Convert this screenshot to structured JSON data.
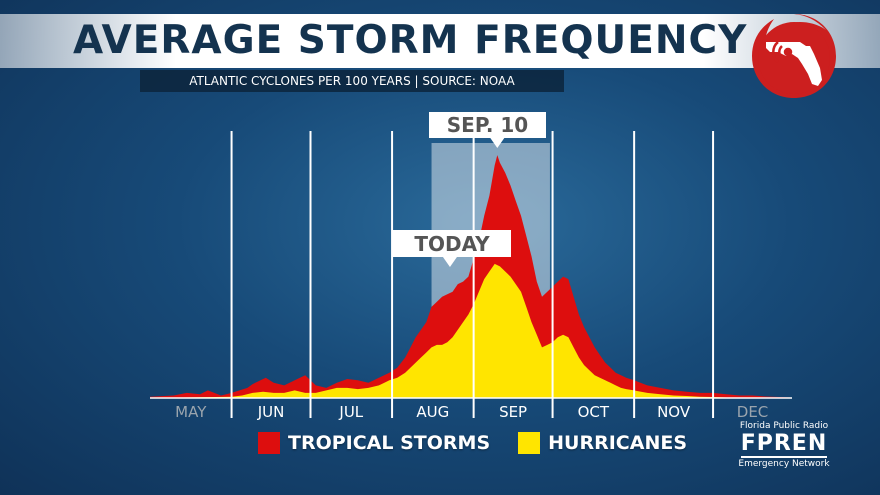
{
  "header": {
    "title": "AVERAGE STORM FREQUENCY",
    "subtitle": "ATLANTIC CYCLONES PER 100 YEARS | SOURCE: NOAA"
  },
  "branding": {
    "logo_icon": "storm-florida-logo-icon",
    "fpren_line1": "Florida Public Radio",
    "fpren_line2": "FPREN",
    "fpren_line3": "Emergency Network"
  },
  "colors": {
    "tropical": "#dd0e0e",
    "hurricane": "#ffe500",
    "title": "#14334f",
    "logo_red": "#cc1f1f"
  },
  "chart_data": {
    "type": "area",
    "title": "AVERAGE STORM FREQUENCY",
    "subtitle": "ATLANTIC CYCLONES PER 100 YEARS | SOURCE: NOAA",
    "xlabel": "",
    "ylabel": "",
    "x_unit": "day of year",
    "x_range": [
      121,
      365
    ],
    "y_range": [
      0,
      100
    ],
    "grid": "vertical lines at month boundaries",
    "month_ticks": [
      {
        "label": "MAY",
        "start": 121,
        "end": 152,
        "past": true
      },
      {
        "label": "JUN",
        "start": 152,
        "end": 182,
        "past": false
      },
      {
        "label": "JUL",
        "start": 182,
        "end": 213,
        "past": false
      },
      {
        "label": "AUG",
        "start": 213,
        "end": 244,
        "past": false
      },
      {
        "label": "SEP",
        "start": 244,
        "end": 274,
        "past": false
      },
      {
        "label": "OCT",
        "start": 274,
        "end": 305,
        "past": false
      },
      {
        "label": "NOV",
        "start": 305,
        "end": 335,
        "past": false
      },
      {
        "label": "DEC",
        "start": 335,
        "end": 365,
        "past": true
      }
    ],
    "highlight_range": [
      228,
      273
    ],
    "annotations": [
      {
        "label": "SEP. 10",
        "x": 253
      },
      {
        "label": "TODAY",
        "x": 235
      }
    ],
    "legend": [
      "TROPICAL STORMS",
      "HURRICANES"
    ],
    "legend_position": "bottom",
    "series": [
      {
        "name": "TROPICAL STORMS",
        "color": "#dd0e0e",
        "x": [
          121,
          130,
          135,
          140,
          143,
          148,
          150,
          152,
          155,
          158,
          160,
          163,
          165,
          168,
          172,
          176,
          180,
          184,
          188,
          192,
          196,
          200,
          204,
          208,
          212,
          215,
          218,
          220,
          222,
          224,
          226,
          228,
          230,
          232,
          234,
          236,
          238,
          240,
          242,
          244,
          246,
          248,
          250,
          252,
          253,
          254,
          256,
          258,
          260,
          262,
          264,
          266,
          268,
          270,
          272,
          274,
          276,
          278,
          280,
          282,
          284,
          286,
          288,
          290,
          292,
          294,
          296,
          298,
          300,
          302,
          305,
          310,
          315,
          320,
          325,
          330,
          335,
          340,
          345,
          350,
          355,
          360,
          365
        ],
        "values": [
          0.5,
          1,
          2,
          1.5,
          3,
          1,
          1.5,
          2,
          3,
          4,
          5.5,
          7,
          8,
          6,
          5,
          7,
          9,
          5,
          4,
          6,
          7.5,
          7,
          6,
          8,
          10,
          12,
          16,
          20,
          24,
          27,
          30,
          36,
          38,
          40,
          41,
          42,
          45,
          46,
          48,
          55,
          62,
          72,
          80,
          92,
          96,
          93,
          89,
          84,
          78,
          72,
          64,
          56,
          46,
          40,
          42,
          44,
          46,
          48,
          47,
          40,
          33,
          28,
          24,
          20,
          17,
          14,
          12,
          10,
          9,
          8,
          7,
          5,
          4,
          3,
          2.5,
          2,
          2,
          1.5,
          1,
          1,
          0.6,
          0.4,
          0.2
        ]
      },
      {
        "name": "HURRICANES",
        "color": "#ffe500",
        "x": [
          121,
          140,
          152,
          156,
          160,
          164,
          168,
          172,
          176,
          180,
          184,
          188,
          192,
          196,
          200,
          204,
          208,
          212,
          215,
          218,
          220,
          222,
          224,
          226,
          228,
          230,
          232,
          234,
          236,
          238,
          240,
          242,
          244,
          246,
          248,
          250,
          252,
          254,
          256,
          258,
          260,
          262,
          264,
          266,
          268,
          270,
          272,
          274,
          276,
          278,
          280,
          282,
          284,
          286,
          288,
          290,
          292,
          294,
          296,
          298,
          300,
          302,
          305,
          310,
          315,
          320,
          325,
          330,
          335,
          340,
          345,
          350,
          355,
          360,
          365
        ],
        "values": [
          0,
          0.3,
          0.5,
          1,
          2,
          2.5,
          2,
          2,
          3,
          2,
          2,
          3,
          4,
          4,
          3.5,
          4,
          5,
          7,
          8,
          10,
          12,
          14,
          16,
          18,
          20,
          21,
          21,
          22,
          24,
          27,
          30,
          33,
          37,
          42,
          47,
          50,
          53,
          52,
          50,
          48,
          45,
          42,
          36,
          30,
          25,
          20,
          21,
          22,
          24,
          25,
          24,
          20,
          16,
          13,
          11,
          9,
          8,
          7,
          6,
          5,
          4,
          3.5,
          3,
          2,
          1.5,
          1,
          0.8,
          0.5,
          0.4,
          0.2,
          0.1,
          0,
          0,
          0,
          0
        ]
      }
    ]
  }
}
